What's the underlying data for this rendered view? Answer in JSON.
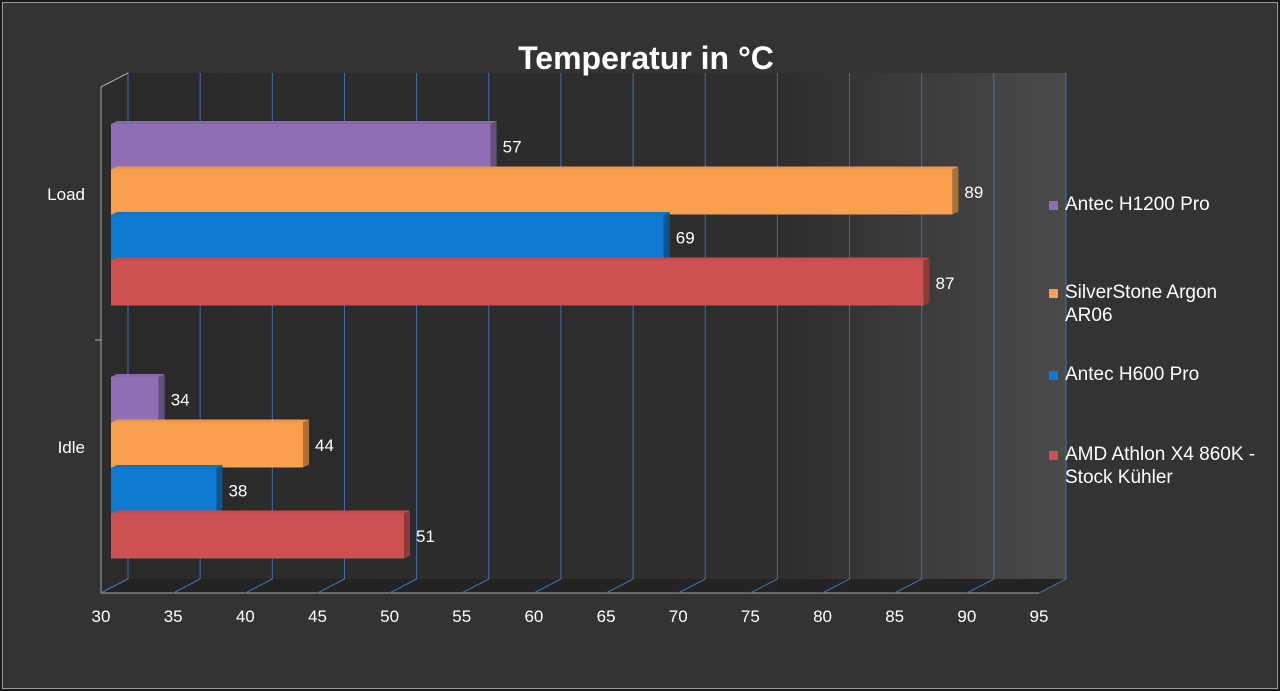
{
  "chart_data": {
    "type": "bar",
    "orientation": "horizontal",
    "title": "Temperatur in °C",
    "categories": [
      "Load",
      "Idle"
    ],
    "series": [
      {
        "name": "Antec H1200 Pro",
        "color": "#8e6fb4",
        "values": [
          57,
          34
        ]
      },
      {
        "name": "SilverStone Argon AR06",
        "color": "#f9a04f",
        "values": [
          89,
          44
        ]
      },
      {
        "name": "Antec H600 Pro",
        "color": "#0f7ad2",
        "values": [
          69,
          38
        ]
      },
      {
        "name": "AMD Athlon X4 860K - Stock Kühler",
        "color": "#cd5151",
        "values": [
          87,
          51
        ]
      }
    ],
    "xlim": [
      30,
      95
    ],
    "xticks": [
      30,
      35,
      40,
      45,
      50,
      55,
      60,
      65,
      70,
      75,
      80,
      85,
      90,
      95
    ],
    "grid": true,
    "legend": "right",
    "xlabel": "",
    "ylabel": ""
  }
}
